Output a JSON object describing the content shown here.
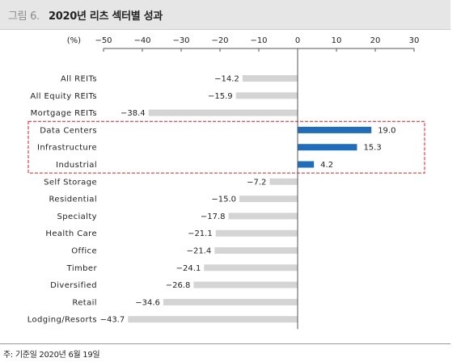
{
  "header": {
    "figure_label": "그림 6.",
    "title": "2020년 리츠 섹터별 성과"
  },
  "footnote": "주: 기준일 2020년 6월 19일",
  "colors": {
    "positive_bar": "#1f6ebe",
    "negative_bar": "#d4d4d4",
    "highlight_box": "#e0191f",
    "title_bar_bg": "#e6e6e6"
  },
  "chart_data": {
    "type": "bar",
    "orientation": "horizontal",
    "unit_label": "(%)",
    "categories": [
      "All REITs",
      "All Equity REITs",
      "Mortgage REITs",
      "Data Centers",
      "Infrastructure",
      "Industrial",
      "Self Storage",
      "Residential",
      "Specialty",
      "Health Care",
      "Office",
      "Timber",
      "Diversified",
      "Retail",
      "Lodging/Resorts"
    ],
    "values": [
      -14.2,
      -15.9,
      -38.4,
      19.0,
      15.3,
      4.2,
      -7.2,
      -15.0,
      -17.8,
      -21.1,
      -21.4,
      -24.1,
      -26.8,
      -34.6,
      -43.7
    ],
    "value_labels": [
      "−14.2",
      "−15.9",
      "−38.4",
      "19.0",
      "15.3",
      "4.2",
      "−7.2",
      "−15.0",
      "−17.8",
      "−21.1",
      "−21.4",
      "−24.1",
      "−26.8",
      "−34.6",
      "−43.7"
    ],
    "xlim": [
      -50,
      30
    ],
    "ticks": [
      -50,
      -40,
      -30,
      -20,
      -10,
      0,
      10,
      20,
      30
    ],
    "tick_labels": [
      "−50",
      "−40",
      "−30",
      "−20",
      "−10",
      "0",
      "10",
      "20",
      "30"
    ],
    "axis_position": "top",
    "grid": false,
    "legend": "none",
    "highlighted_categories": [
      "Data Centers",
      "Infrastructure",
      "Industrial"
    ]
  }
}
